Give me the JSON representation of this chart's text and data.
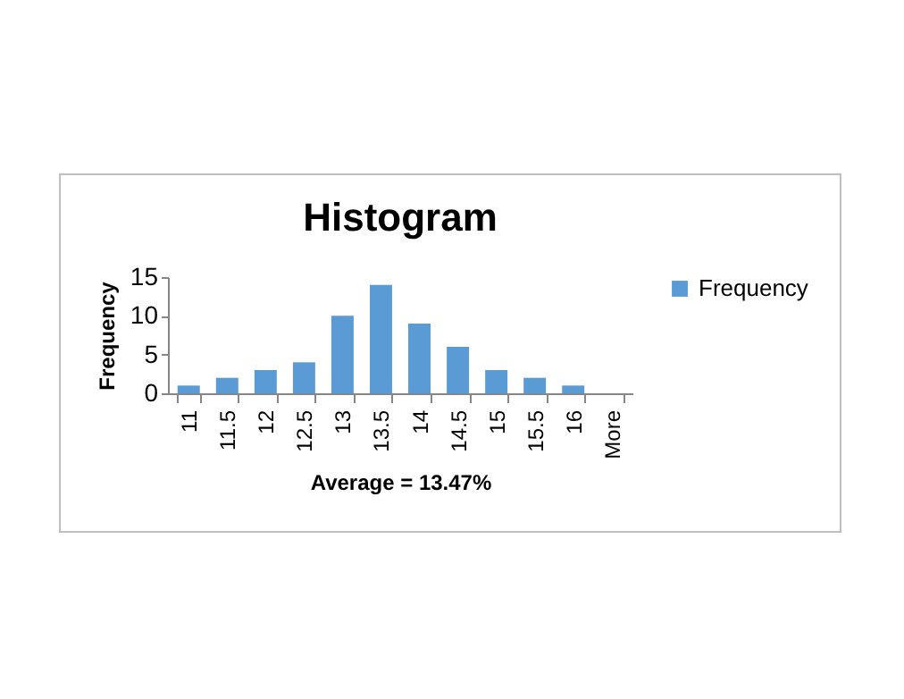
{
  "chart_data": {
    "type": "bar",
    "title": "Histogram",
    "xlabel": "Average = 13.47%",
    "ylabel": "Frequency",
    "categories": [
      "11",
      "11.5",
      "12",
      "12.5",
      "13",
      "13.5",
      "14",
      "14.5",
      "15",
      "15.5",
      "16",
      "More"
    ],
    "series": [
      {
        "name": "Frequency",
        "color": "#5b9bd5",
        "values": [
          1,
          2,
          3,
          4,
          10,
          14,
          9,
          6,
          3,
          2,
          1,
          0
        ]
      }
    ],
    "ylim": [
      0,
      15
    ],
    "yticks": [
      0,
      5,
      10,
      15
    ],
    "grid": false,
    "legend": "right"
  }
}
